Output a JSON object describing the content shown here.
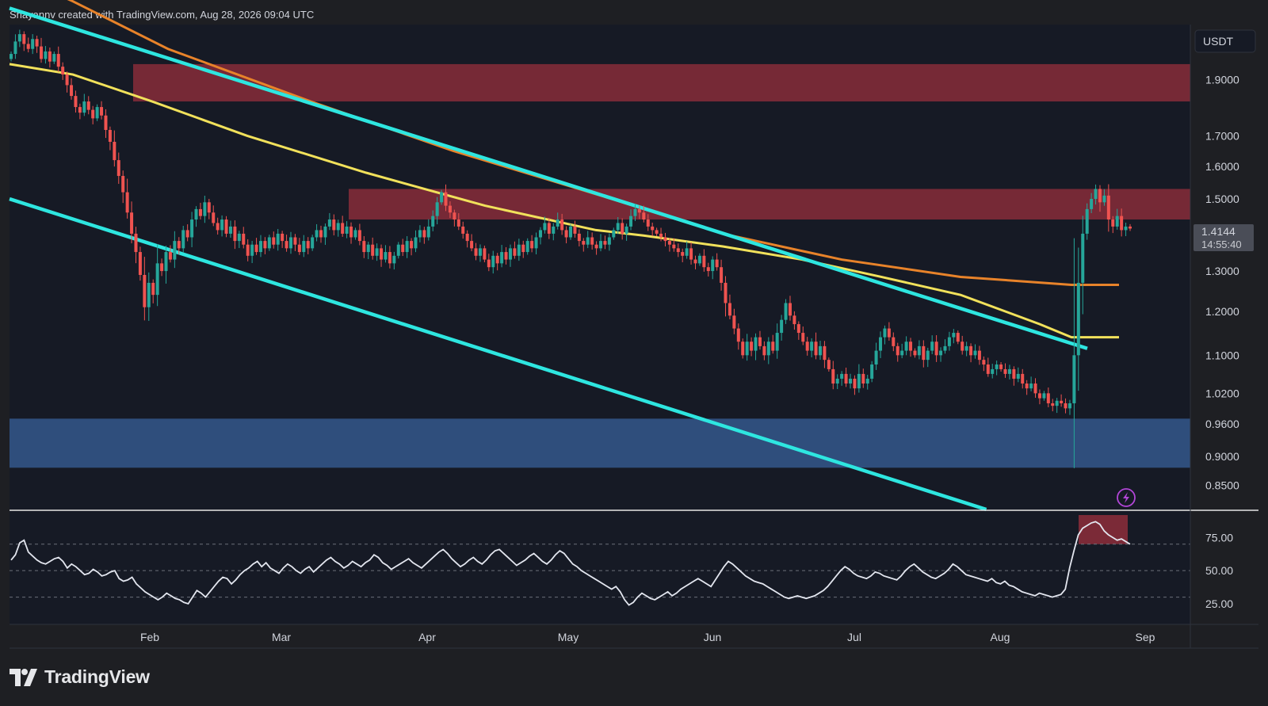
{
  "header": {
    "attribution": "Shayannv created with TradingView.com, Aug 28, 2026 09:04 UTC"
  },
  "brand": {
    "name": "TradingView"
  },
  "colors": {
    "background": "#1e1f23",
    "pane": "#161a25",
    "bull": "#26a69a",
    "bear": "#ef5350",
    "resistance_zone": "#7b2a37",
    "support_zone": "#2f4e7c",
    "channel": "#2ee6e0",
    "ma_long": "#e8832a",
    "ma_short": "#f1e15b",
    "rsi_line": "#e3e6ef",
    "price_tag": "#4a4d57"
  },
  "icons": {
    "alert": "lightning-alert-icon"
  },
  "chart_data": [
    {
      "type": "candlestick",
      "currency": "USDT",
      "y_scale": "log",
      "ylim": [
        0.81,
        2.12
      ],
      "y_ticks": [
        "1.9000",
        "1.7000",
        "1.6000",
        "1.5000",
        "1.3000",
        "1.2000",
        "1.1000",
        "1.0200",
        "0.9600",
        "0.9000",
        "0.8500"
      ],
      "x_ticks": [
        "Feb",
        "Mar",
        "Apr",
        "May",
        "Jun",
        "Jul",
        "Aug",
        "Sep"
      ],
      "last_price": {
        "price": "1.4144",
        "countdown": "14:55:40"
      },
      "closes": [
        2.0,
        2.05,
        2.08,
        2.04,
        2.02,
        2.06,
        2.03,
        1.98,
        2.01,
        1.97,
        2.0,
        1.95,
        1.92,
        1.88,
        1.84,
        1.8,
        1.78,
        1.82,
        1.79,
        1.76,
        1.8,
        1.77,
        1.72,
        1.68,
        1.62,
        1.57,
        1.52,
        1.46,
        1.4,
        1.35,
        1.29,
        1.21,
        1.27,
        1.24,
        1.32,
        1.3,
        1.35,
        1.33,
        1.38,
        1.36,
        1.41,
        1.39,
        1.44,
        1.47,
        1.45,
        1.49,
        1.46,
        1.43,
        1.41,
        1.44,
        1.4,
        1.42,
        1.38,
        1.4,
        1.37,
        1.34,
        1.37,
        1.35,
        1.38,
        1.36,
        1.39,
        1.37,
        1.4,
        1.38,
        1.36,
        1.39,
        1.37,
        1.35,
        1.38,
        1.36,
        1.39,
        1.41,
        1.39,
        1.42,
        1.44,
        1.41,
        1.43,
        1.4,
        1.42,
        1.39,
        1.41,
        1.38,
        1.35,
        1.37,
        1.34,
        1.36,
        1.33,
        1.35,
        1.32,
        1.34,
        1.37,
        1.35,
        1.38,
        1.36,
        1.39,
        1.41,
        1.39,
        1.42,
        1.45,
        1.49,
        1.52,
        1.48,
        1.46,
        1.44,
        1.42,
        1.4,
        1.38,
        1.36,
        1.34,
        1.36,
        1.33,
        1.31,
        1.34,
        1.32,
        1.35,
        1.33,
        1.36,
        1.34,
        1.37,
        1.35,
        1.38,
        1.36,
        1.39,
        1.41,
        1.43,
        1.4,
        1.42,
        1.44,
        1.41,
        1.39,
        1.42,
        1.4,
        1.38,
        1.37,
        1.39,
        1.37,
        1.36,
        1.38,
        1.37,
        1.39,
        1.41,
        1.43,
        1.4,
        1.42,
        1.45,
        1.47,
        1.46,
        1.44,
        1.42,
        1.41,
        1.4,
        1.39,
        1.38,
        1.37,
        1.36,
        1.35,
        1.34,
        1.36,
        1.33,
        1.32,
        1.34,
        1.31,
        1.3,
        1.33,
        1.31,
        1.27,
        1.22,
        1.19,
        1.16,
        1.13,
        1.1,
        1.13,
        1.11,
        1.14,
        1.12,
        1.1,
        1.13,
        1.11,
        1.15,
        1.18,
        1.22,
        1.19,
        1.17,
        1.15,
        1.13,
        1.11,
        1.13,
        1.1,
        1.12,
        1.09,
        1.07,
        1.04,
        1.05,
        1.06,
        1.04,
        1.05,
        1.03,
        1.06,
        1.04,
        1.05,
        1.08,
        1.11,
        1.14,
        1.16,
        1.14,
        1.12,
        1.1,
        1.11,
        1.13,
        1.11,
        1.1,
        1.12,
        1.09,
        1.11,
        1.13,
        1.1,
        1.11,
        1.12,
        1.14,
        1.15,
        1.13,
        1.11,
        1.12,
        1.1,
        1.11,
        1.09,
        1.08,
        1.06,
        1.07,
        1.08,
        1.07,
        1.06,
        1.07,
        1.05,
        1.06,
        1.04,
        1.03,
        1.04,
        1.02,
        1.01,
        1.02,
        1.0,
        0.995,
        1.005,
        1.0,
        0.99,
        1.0,
        1.1,
        1.27,
        1.4,
        1.47,
        1.5,
        1.53,
        1.49,
        1.51,
        1.44,
        1.42,
        1.45,
        1.41,
        1.42,
        1.4144
      ],
      "resistance_zones": [
        [
          1.82,
          1.96
        ],
        [
          1.44,
          1.53
        ]
      ],
      "support_zone": [
        0.88,
        0.97
      ],
      "ma_long": {
        "points": [
          [
            0,
            2.35
          ],
          [
            80,
            2.22
          ],
          [
            200,
            2.02
          ],
          [
            380,
            1.82
          ],
          [
            560,
            1.65
          ],
          [
            760,
            1.5
          ],
          [
            900,
            1.4
          ],
          [
            1050,
            1.33
          ],
          [
            1200,
            1.285
          ],
          [
            1340,
            1.265
          ],
          [
            1400,
            1.265
          ]
        ]
      },
      "ma_short": {
        "points": [
          [
            0,
            1.96
          ],
          [
            80,
            1.92
          ],
          [
            180,
            1.82
          ],
          [
            300,
            1.7
          ],
          [
            450,
            1.58
          ],
          [
            600,
            1.48
          ],
          [
            740,
            1.41
          ],
          [
            800,
            1.395
          ],
          [
            900,
            1.365
          ],
          [
            1000,
            1.33
          ],
          [
            1100,
            1.285
          ],
          [
            1200,
            1.24
          ],
          [
            1300,
            1.17
          ],
          [
            1340,
            1.14
          ],
          [
            1400,
            1.14
          ]
        ]
      },
      "channel_upper": [
        [
          0,
          2.19
        ],
        [
          1360,
          1.115
        ]
      ],
      "channel_lower": [
        [
          0,
          1.5
        ],
        [
          1360,
          0.76
        ]
      ]
    },
    {
      "type": "line",
      "indicator": "RSI",
      "ylim": [
        10,
        95
      ],
      "y_ticks": [
        "75.00",
        "50.00",
        "25.00"
      ],
      "bands": [
        70,
        50,
        30
      ],
      "overbought_highlight": [
        70,
        92
      ],
      "series": [
        {
          "values": [
            58,
            62,
            71,
            73,
            64,
            61,
            58,
            56,
            55,
            57,
            59,
            60,
            57,
            52,
            55,
            53,
            50,
            47,
            48,
            51,
            49,
            46,
            47,
            49,
            50,
            44,
            42,
            43,
            45,
            40,
            37,
            34,
            32,
            30,
            28,
            30,
            33,
            31,
            29,
            28,
            26,
            25,
            30,
            35,
            33,
            30,
            34,
            38,
            42,
            45,
            44,
            40,
            43,
            47,
            50,
            52,
            55,
            57,
            53,
            56,
            52,
            50,
            48,
            52,
            55,
            53,
            50,
            48,
            51,
            53,
            49,
            52,
            55,
            58,
            60,
            57,
            55,
            52,
            54,
            57,
            55,
            53,
            56,
            58,
            62,
            60,
            56,
            54,
            51,
            53,
            55,
            57,
            59,
            56,
            54,
            52,
            55,
            58,
            61,
            64,
            66,
            63,
            59,
            56,
            53,
            55,
            58,
            60,
            57,
            55,
            58,
            62,
            65,
            66,
            63,
            60,
            57,
            54,
            56,
            58,
            61,
            63,
            60,
            57,
            55,
            58,
            62,
            65,
            63,
            59,
            55,
            53,
            50,
            48,
            46,
            44,
            42,
            40,
            38,
            36,
            38,
            34,
            28,
            24,
            26,
            30,
            33,
            31,
            29,
            28,
            30,
            32,
            34,
            31,
            33,
            36,
            38,
            40,
            42,
            44,
            42,
            40,
            38,
            43,
            48,
            53,
            57,
            55,
            52,
            49,
            46,
            44,
            42,
            41,
            40,
            38,
            36,
            34,
            32,
            30,
            29,
            30,
            31,
            30,
            29,
            30,
            31,
            33,
            35,
            38,
            42,
            46,
            50,
            53,
            51,
            48,
            46,
            45,
            44,
            46,
            49,
            48,
            46,
            45,
            44,
            43,
            46,
            50,
            53,
            55,
            52,
            49,
            47,
            45,
            44,
            46,
            48,
            51,
            55,
            53,
            50,
            47,
            46,
            45,
            44,
            43,
            42,
            44,
            41,
            40,
            42,
            39,
            38,
            36,
            34,
            33,
            32,
            31,
            33,
            32,
            31,
            30,
            31,
            32,
            36,
            52,
            65,
            77,
            82,
            84,
            86,
            87,
            85,
            80,
            77,
            75,
            73,
            74,
            72,
            70
          ]
        }
      ]
    }
  ]
}
